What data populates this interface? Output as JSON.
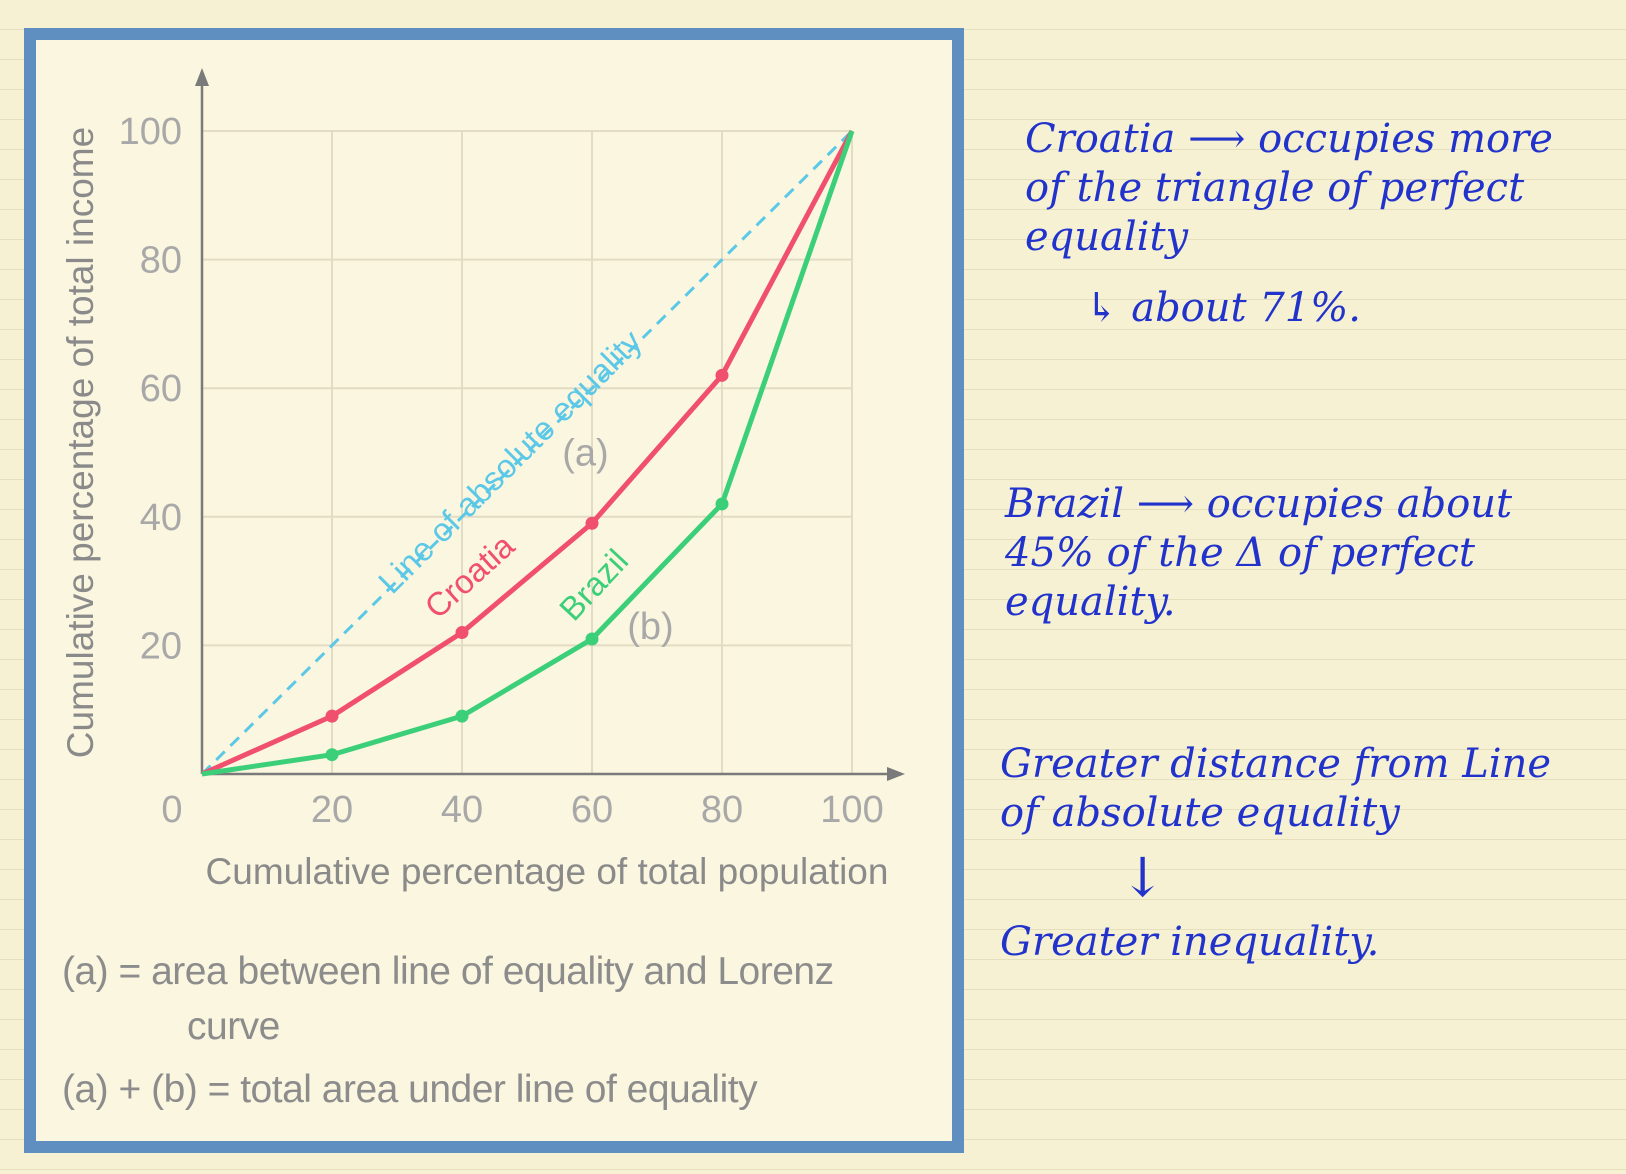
{
  "chart_data": {
    "type": "line",
    "xlabel": "Cumulative percentage of total population",
    "ylabel": "Cumulative percentage of total income",
    "xlim": [
      0,
      100
    ],
    "ylim": [
      0,
      100
    ],
    "x_ticks": [
      "0",
      "20",
      "40",
      "60",
      "80",
      "100"
    ],
    "y_ticks": [
      "20",
      "40",
      "60",
      "80",
      "100"
    ],
    "grid": true,
    "series": [
      {
        "name": "Line of absolute equality",
        "color": "#5bc8e8",
        "style": "dashed",
        "x": [
          0,
          100
        ],
        "y": [
          0,
          100
        ]
      },
      {
        "name": "Croatia",
        "color": "#f0506e",
        "style": "solid",
        "markers": true,
        "x": [
          0,
          20,
          40,
          60,
          80,
          100
        ],
        "y": [
          0,
          9,
          22,
          39,
          62,
          100
        ]
      },
      {
        "name": "Brazil",
        "color": "#3ccf7a",
        "style": "solid",
        "markers": true,
        "x": [
          0,
          20,
          40,
          60,
          80,
          100
        ],
        "y": [
          0,
          3,
          9,
          21,
          42,
          100
        ]
      }
    ],
    "annotations": [
      {
        "text": "(a)",
        "x": 59,
        "y": 48
      },
      {
        "text": "(b)",
        "x": 69,
        "y": 21
      }
    ]
  },
  "captions": {
    "line1": "(a) = area between line of equality and Lorenz",
    "line1_cont": "curve",
    "line2": "(a) + (b) = total area under line of equality"
  },
  "notes": {
    "croatia": [
      "Croatia ⟶ occupies more",
      "of the triangle of perfect",
      "equality",
      "↳ about 71%."
    ],
    "brazil": [
      "Brazil ⟶ occupies about",
      "45% of the Δ of perfect",
      "equality."
    ],
    "distance": [
      "Greater distance from Line",
      "of absolute equality",
      "↓",
      "Greater inequality."
    ]
  },
  "colors": {
    "frame": "#5e8fc0",
    "ink": "#2233cc"
  }
}
